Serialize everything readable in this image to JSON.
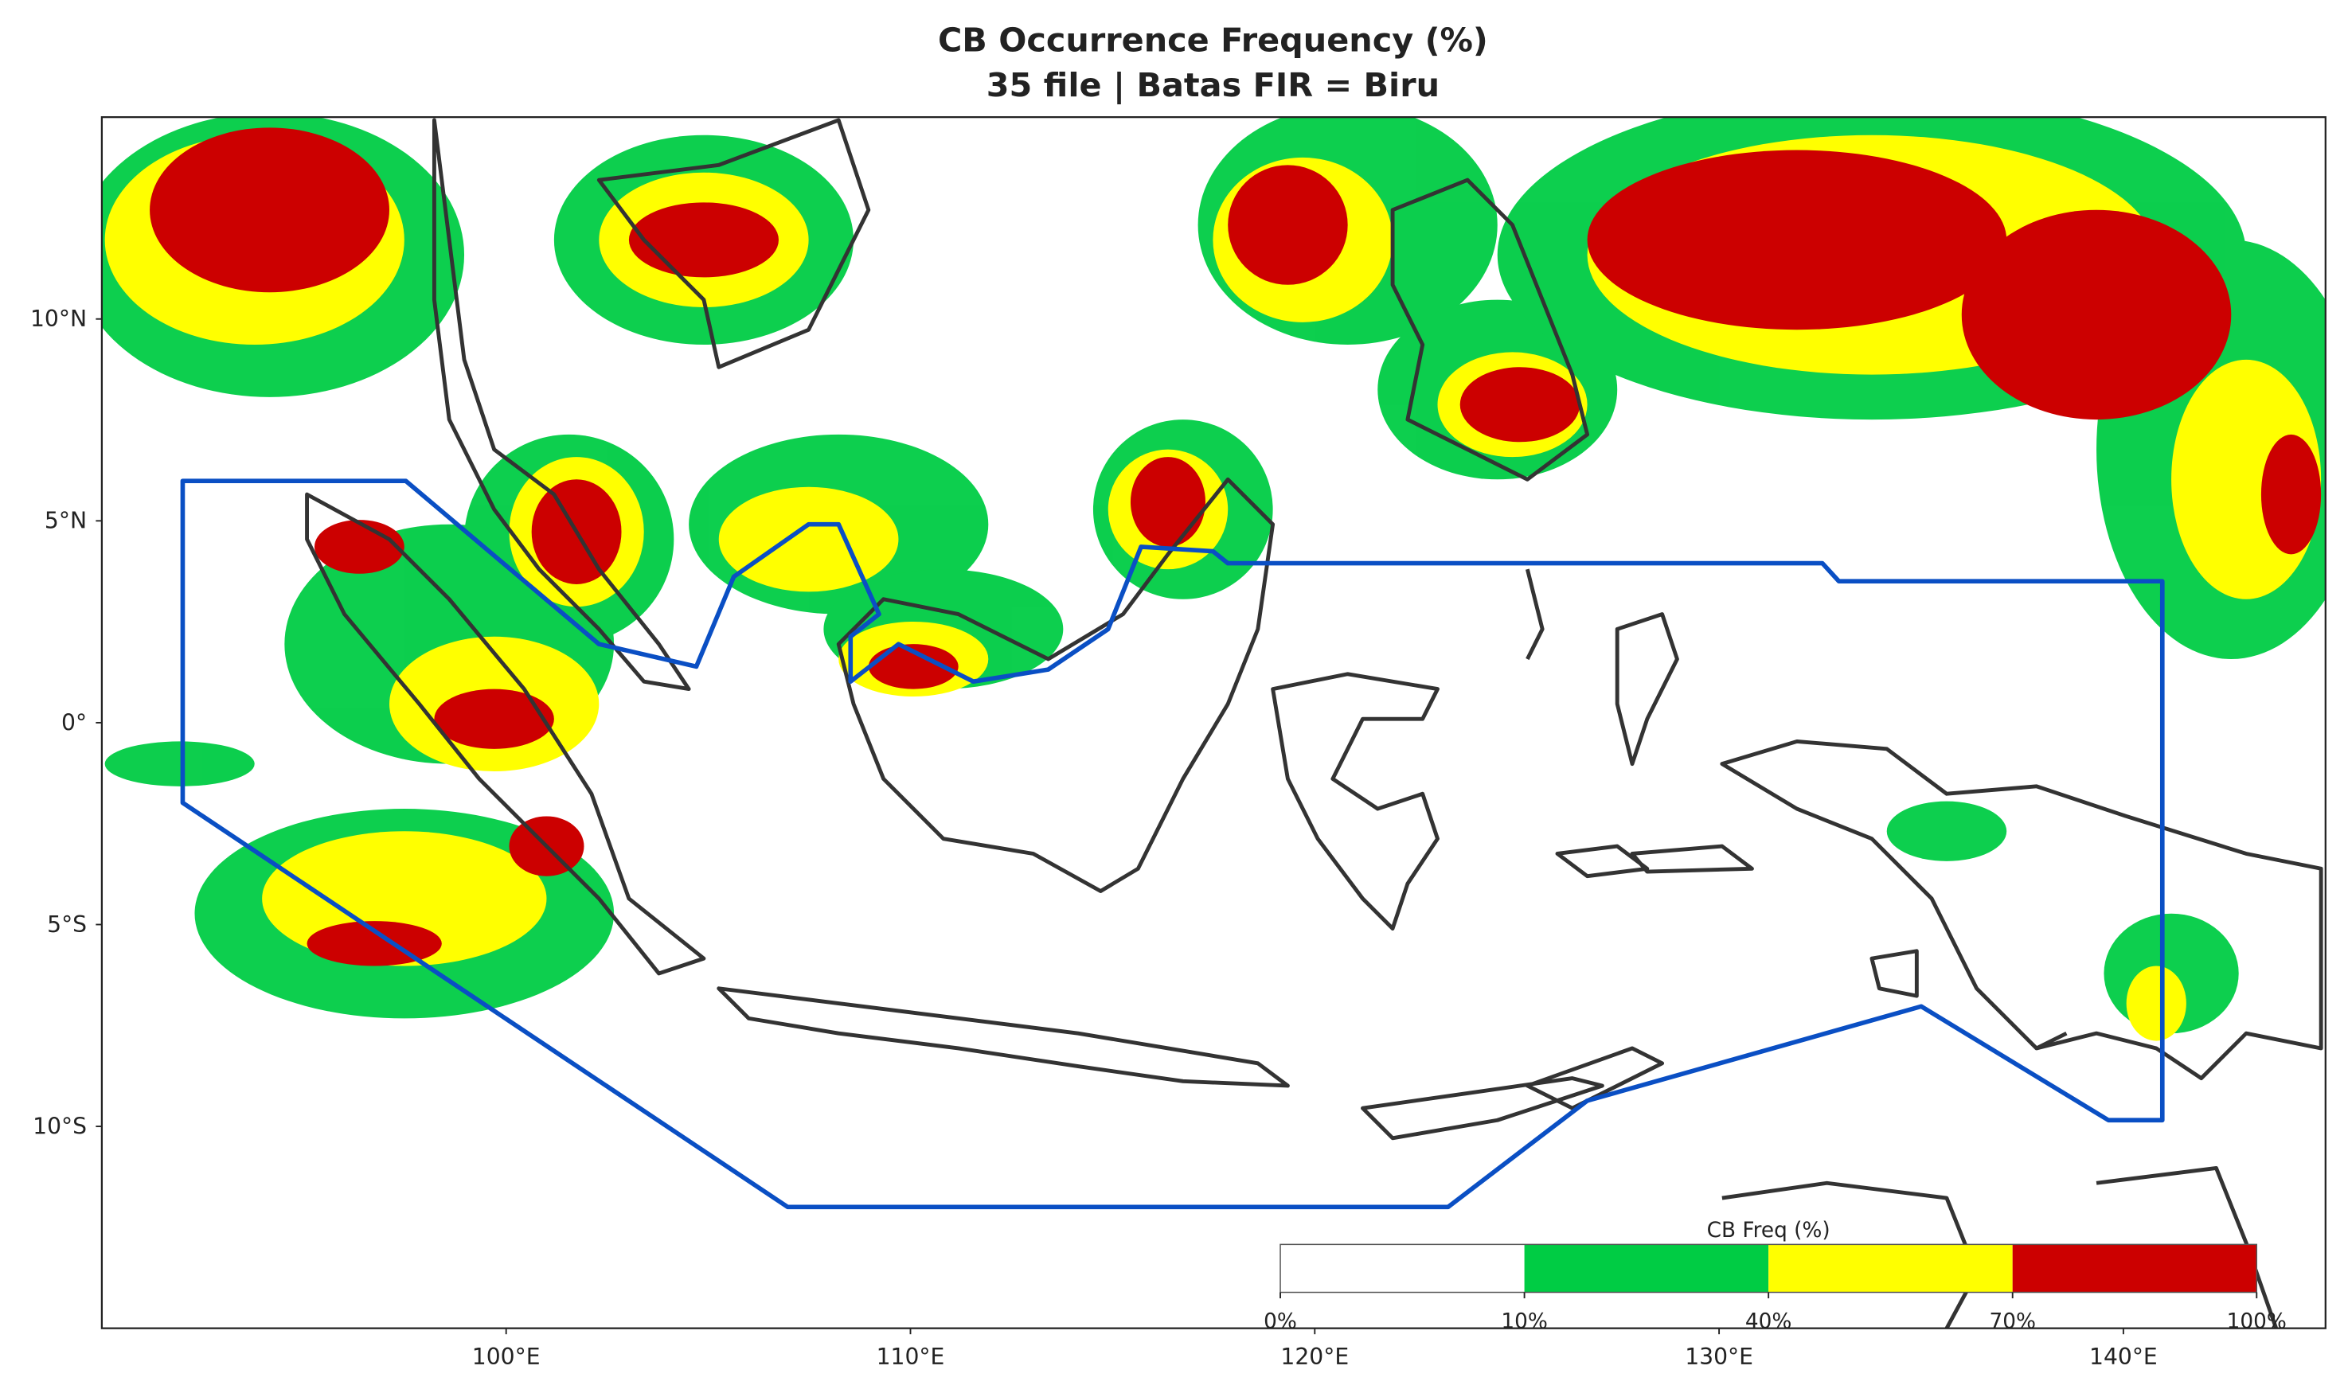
{
  "map": {
    "title": "CB Occurrence Frequency (%)",
    "subtitle": "35 file  |  Batas FIR = Biru",
    "xlim": [
      90,
      145
    ],
    "ylim": [
      -15,
      15
    ],
    "xticks": [
      {
        "value": 100,
        "label": "100°E"
      },
      {
        "value": 110,
        "label": "110°E"
      },
      {
        "value": 120,
        "label": "120°E"
      },
      {
        "value": 130,
        "label": "130°E"
      },
      {
        "value": 140,
        "label": "140°E"
      }
    ],
    "yticks": [
      {
        "value": 10,
        "label": "10°N"
      },
      {
        "value": 5,
        "label": "5°N"
      },
      {
        "value": 0,
        "label": "0°"
      },
      {
        "value": -5,
        "label": "5°S"
      },
      {
        "value": -10,
        "label": "10°S"
      }
    ],
    "colorbar": {
      "label": "CB Freq (%)",
      "colors": [
        "#ffffff",
        "#00cc44",
        "#ffff00",
        "#cc0000"
      ],
      "ticks": [
        {
          "value": 0,
          "label": "0%"
        },
        {
          "value": 10,
          "label": "10%"
        },
        {
          "value": 40,
          "label": "40%"
        },
        {
          "value": 70,
          "label": "70%"
        },
        {
          "value": 100,
          "label": "100%"
        }
      ]
    }
  }
}
